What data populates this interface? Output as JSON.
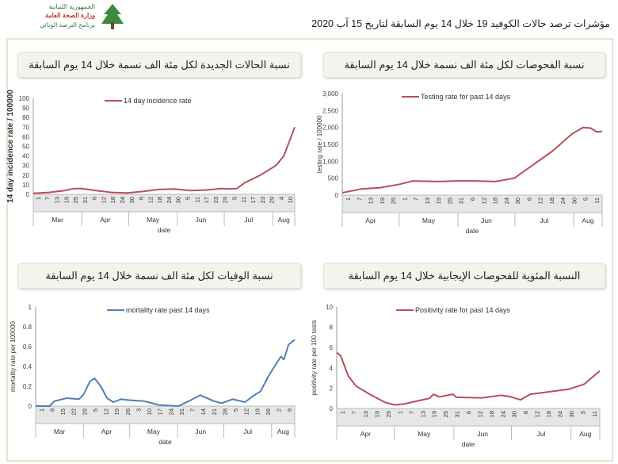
{
  "header": {
    "logo_line1": "الجمهورية اللبنانية",
    "logo_line2": "وزارة الصحة العامة",
    "logo_line3": "برنامج الترصد الوبائي",
    "title": "مؤشرات ترصد حالات الكوفيد 19 خلال 14 يوم السابقة لتاريخ 15 آب 2020"
  },
  "panels": [
    {
      "title": "نسبة الحالات الجديدة لكل مئة الف نسمة خلال 14 يوم السابقة"
    },
    {
      "title": "نسبة الفحوصات لكل مئة الف نسمة خلال 14 يوم السابقة"
    },
    {
      "title": "نسبة الوفيات لكل مئة الف نسمة خلال 14 يوم السابقة"
    },
    {
      "title": "النسبة المئوية للفحوصات الإيجابية خلال 14 يوم السابقة"
    }
  ],
  "chart_data": [
    {
      "type": "line",
      "legend": "14 day incidence rate",
      "ylabel": "14 day incidence rate / 100000",
      "xlabel": "date",
      "color": "#b5505a",
      "ylim": [
        0,
        100
      ],
      "yticks": [
        "0",
        "10",
        "20",
        "30",
        "40",
        "50",
        "60",
        "70",
        "80",
        "90",
        "100"
      ],
      "ndays": 168,
      "xticks": [
        "1",
        "7",
        "13",
        "19",
        "25",
        "31",
        "6",
        "12",
        "18",
        "24",
        "30",
        "6",
        "12",
        "18",
        "24",
        "30",
        "5",
        "11",
        "17",
        "23",
        "29",
        "5",
        "11",
        "17",
        "23",
        "29",
        "4",
        "10"
      ],
      "months": [
        "Mar",
        "Apr",
        "May",
        "Jun",
        "Jul",
        "Aug"
      ],
      "month_days": [
        31,
        30,
        31,
        30,
        31,
        14
      ],
      "points": [
        [
          0,
          1
        ],
        [
          10,
          2
        ],
        [
          20,
          4
        ],
        [
          26,
          6
        ],
        [
          31,
          6
        ],
        [
          40,
          4
        ],
        [
          50,
          2
        ],
        [
          60,
          1.5
        ],
        [
          70,
          3
        ],
        [
          80,
          5
        ],
        [
          90,
          5.5
        ],
        [
          100,
          4
        ],
        [
          110,
          4.5
        ],
        [
          120,
          6
        ],
        [
          125,
          5.5
        ],
        [
          130,
          6
        ],
        [
          135,
          12
        ],
        [
          145,
          20
        ],
        [
          155,
          30
        ],
        [
          160,
          40
        ],
        [
          167,
          70
        ]
      ]
    },
    {
      "type": "line",
      "legend": "Testing rate for past 14 days",
      "ylabel": "testing rate / 100000",
      "xlabel": "date",
      "color": "#b5505a",
      "ylim": [
        0,
        3000
      ],
      "yticks": [
        "0",
        "500",
        "1,000",
        "1,500",
        "2,000",
        "2,500",
        "3,000"
      ],
      "ndays": 137,
      "xticks": [
        "1",
        "7",
        "13",
        "19",
        "25",
        "1",
        "7",
        "13",
        "19",
        "25",
        "31",
        "6",
        "12",
        "18",
        "24",
        "30",
        "6",
        "12",
        "18",
        "24",
        "30",
        "5",
        "11"
      ],
      "months": [
        "Apr",
        "May",
        "Jun",
        "Jul",
        "Aug"
      ],
      "month_days": [
        30,
        31,
        30,
        31,
        15
      ],
      "points": [
        [
          0,
          70
        ],
        [
          10,
          180
        ],
        [
          20,
          220
        ],
        [
          30,
          320
        ],
        [
          37,
          420
        ],
        [
          50,
          400
        ],
        [
          60,
          420
        ],
        [
          70,
          420
        ],
        [
          80,
          400
        ],
        [
          90,
          500
        ],
        [
          100,
          900
        ],
        [
          110,
          1300
        ],
        [
          120,
          1800
        ],
        [
          126,
          2000
        ],
        [
          130,
          1980
        ],
        [
          133,
          1870
        ],
        [
          136,
          1880
        ]
      ]
    },
    {
      "type": "line",
      "legend": "mortality rate past 14 days",
      "ylabel": "mortality rate per 100000",
      "xlabel": "date",
      "color": "#4f7fb5",
      "ylim": [
        0,
        1
      ],
      "yticks": [
        "0",
        "0.2",
        "0.4",
        "0.6",
        "0.8",
        "1"
      ],
      "ndays": 168,
      "xticks": [
        "1",
        "8",
        "15",
        "22",
        "29",
        "5",
        "12",
        "19",
        "26",
        "3",
        "10",
        "17",
        "24",
        "31",
        "7",
        "14",
        "21",
        "28",
        "5",
        "12",
        "19",
        "26",
        "2",
        "9"
      ],
      "months": [
        "Mar",
        "Apr",
        "May",
        "Jun",
        "Jul",
        "Aug"
      ],
      "month_days": [
        31,
        30,
        31,
        30,
        31,
        15
      ],
      "points": [
        [
          0,
          0
        ],
        [
          9,
          0
        ],
        [
          12,
          0.05
        ],
        [
          20,
          0.08
        ],
        [
          28,
          0.07
        ],
        [
          31,
          0.12
        ],
        [
          35,
          0.25
        ],
        [
          38,
          0.28
        ],
        [
          42,
          0.2
        ],
        [
          46,
          0.08
        ],
        [
          50,
          0.04
        ],
        [
          55,
          0.07
        ],
        [
          60,
          0.06
        ],
        [
          70,
          0.05
        ],
        [
          80,
          0.01
        ],
        [
          92,
          0
        ],
        [
          100,
          0.06
        ],
        [
          106,
          0.11
        ],
        [
          115,
          0.05
        ],
        [
          120,
          0.03
        ],
        [
          127,
          0.07
        ],
        [
          135,
          0.04
        ],
        [
          140,
          0.1
        ],
        [
          145,
          0.15
        ],
        [
          150,
          0.3
        ],
        [
          158,
          0.5
        ],
        [
          160,
          0.47
        ],
        [
          163,
          0.62
        ],
        [
          167,
          0.67
        ]
      ]
    },
    {
      "type": "line",
      "legend": "Positivity rate for past 14 days",
      "ylabel": "positivity rate per 100 tests",
      "xlabel": "date",
      "color": "#b5505a",
      "ylim": [
        0,
        10
      ],
      "yticks": [
        "0",
        "2",
        "4",
        "6",
        "8",
        "10"
      ],
      "ndays": 137,
      "xticks": [
        "1",
        "7",
        "13",
        "19",
        "25",
        "1",
        "7",
        "13",
        "19",
        "25",
        "31",
        "6",
        "12",
        "18",
        "24",
        "30",
        "6",
        "12",
        "18",
        "24",
        "30",
        "5",
        "11"
      ],
      "months": [
        "Apr",
        "May",
        "Jun",
        "Jul",
        "Aug"
      ],
      "month_days": [
        30,
        31,
        30,
        31,
        15
      ],
      "points": [
        [
          0,
          5.5
        ],
        [
          2,
          5.2
        ],
        [
          6,
          3.2
        ],
        [
          10,
          2.2
        ],
        [
          18,
          1.3
        ],
        [
          25,
          0.6
        ],
        [
          30,
          0.35
        ],
        [
          35,
          0.45
        ],
        [
          42,
          0.75
        ],
        [
          48,
          1
        ],
        [
          50,
          1.4
        ],
        [
          53,
          1.15
        ],
        [
          60,
          1.4
        ],
        [
          62,
          1.1
        ],
        [
          75,
          1.05
        ],
        [
          85,
          1.3
        ],
        [
          90,
          1.15
        ],
        [
          95,
          0.85
        ],
        [
          100,
          1.4
        ],
        [
          112,
          1.7
        ],
        [
          120,
          1.9
        ],
        [
          128,
          2.4
        ],
        [
          136,
          3.7
        ]
      ]
    }
  ]
}
